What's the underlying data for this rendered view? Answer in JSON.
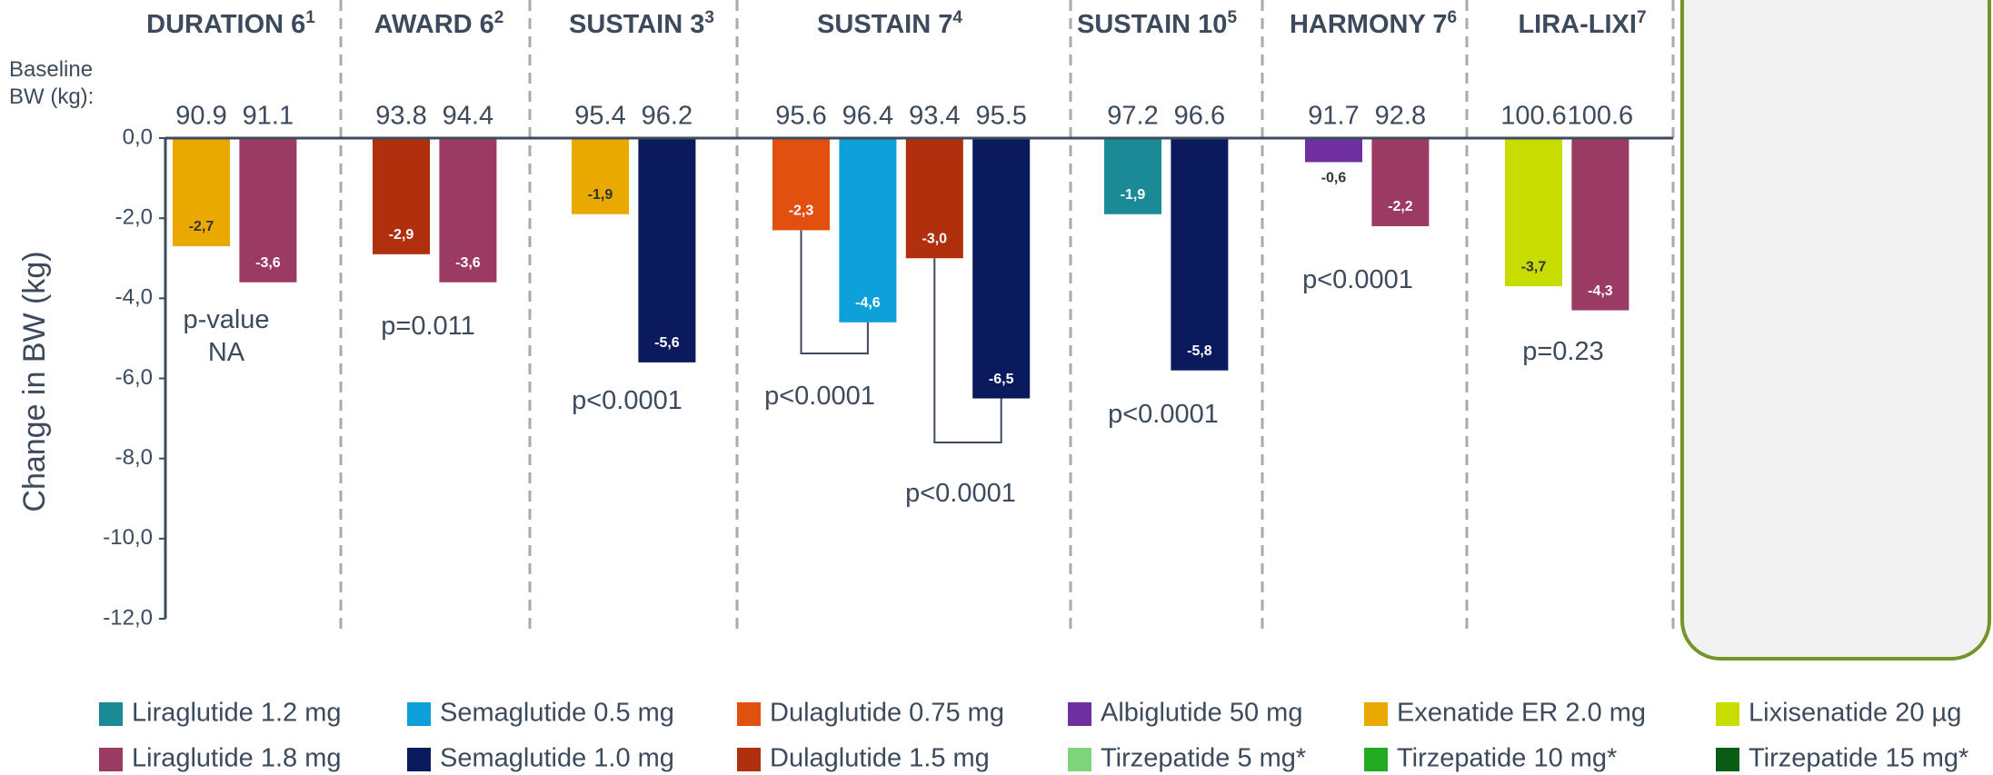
{
  "chart_data": {
    "type": "bar",
    "y_label": "Change in BW (kg)",
    "baseline_label": "Baseline BW (kg):",
    "ylim": [
      -12,
      0
    ],
    "yticks": [
      {
        "value": 0,
        "label": "0,0"
      },
      {
        "value": -2,
        "label": "-2,0"
      },
      {
        "value": -4,
        "label": "-4,0"
      },
      {
        "value": -6,
        "label": "-6,0"
      },
      {
        "value": -8,
        "label": "-8,0"
      },
      {
        "value": -10,
        "label": "-10,0"
      },
      {
        "value": -12,
        "label": "-12,0"
      }
    ],
    "groups": [
      {
        "name": "DURATION 6",
        "ref": "1",
        "p_values": [
          "p-value NA"
        ],
        "bars": [
          {
            "color": "#e9a900",
            "baseline": 90.9,
            "value": -2.7,
            "value_label": "-2,7"
          },
          {
            "color": "#9b3a62",
            "baseline": 91.1,
            "value": -3.6,
            "value_label": "-3,6"
          }
        ]
      },
      {
        "name": "AWARD 6",
        "ref": "2",
        "p_values": [
          "p=0.011"
        ],
        "bars": [
          {
            "color": "#b0300e",
            "baseline": 93.8,
            "value": -2.9,
            "value_label": "-2,9"
          },
          {
            "color": "#9b3a62",
            "baseline": 94.4,
            "value": -3.6,
            "value_label": "-3,6"
          }
        ]
      },
      {
        "name": "SUSTAIN 3",
        "ref": "3",
        "p_values": [
          "p<0.0001"
        ],
        "bars": [
          {
            "color": "#e9a900",
            "baseline": 95.4,
            "value": -1.9,
            "value_label": "-1,9"
          },
          {
            "color": "#0b1a5c",
            "baseline": 96.2,
            "value": -5.6,
            "value_label": "-5,6"
          }
        ]
      },
      {
        "name": "SUSTAIN 7",
        "ref": "4",
        "p_values": [
          "p<0.0001",
          "p<0.0001"
        ],
        "bars": [
          {
            "color": "#e2500f",
            "baseline": 95.6,
            "value": -2.3,
            "value_label": "-2,3"
          },
          {
            "color": "#0ea0d8",
            "baseline": 96.4,
            "value": -4.6,
            "value_label": "-4,6"
          },
          {
            "color": "#b0300e",
            "baseline": 93.4,
            "value": -3.0,
            "value_label": "-3,0"
          },
          {
            "color": "#0b1a5c",
            "baseline": 95.5,
            "value": -6.5,
            "value_label": "-6,5"
          }
        ]
      },
      {
        "name": "SUSTAIN 10",
        "ref": "5",
        "p_values": [
          "p<0.0001"
        ],
        "bars": [
          {
            "color": "#1a8a96",
            "baseline": 97.2,
            "value": -1.9,
            "value_label": "-1,9"
          },
          {
            "color": "#0b1a5c",
            "baseline": 96.6,
            "value": -5.8,
            "value_label": "-5,8"
          }
        ]
      },
      {
        "name": "HARMONY 7",
        "ref": "6",
        "p_values": [
          "p<0.0001"
        ],
        "bars": [
          {
            "color": "#7030a0",
            "baseline": 91.7,
            "value": -0.6,
            "value_label": "-0,6"
          },
          {
            "color": "#9b3a62",
            "baseline": 92.8,
            "value": -2.2,
            "value_label": "-2,2"
          }
        ]
      },
      {
        "name": "LIRA-LIXI",
        "ref": "7",
        "p_values": [
          "p=0.23"
        ],
        "bars": [
          {
            "color": "#c8dc00",
            "baseline": 100.6,
            "value": -3.7,
            "value_label": "-3,7"
          },
          {
            "color": "#9b3a62",
            "baseline": 100.6,
            "value": -4.3,
            "value_label": "-4,3"
          }
        ]
      }
    ],
    "legend": [
      {
        "name": "Liraglutide 1.2 mg",
        "color": "#1a8a96"
      },
      {
        "name": "Semaglutide 0.5 mg",
        "color": "#0ea0d8"
      },
      {
        "name": "Dulaglutide 0.75 mg",
        "color": "#e2500f"
      },
      {
        "name": "Albiglutide 50 mg",
        "color": "#7030a0"
      },
      {
        "name": "Exenatide ER 2.0 mg",
        "color": "#e9a900"
      },
      {
        "name": "Lixisenatide 20 µg",
        "color": "#c8dc00"
      },
      {
        "name": "Liraglutide 1.8 mg",
        "color": "#9b3a62"
      },
      {
        "name": "Semaglutide 1.0 mg",
        "color": "#0b1a5c"
      },
      {
        "name": "Dulaglutide 1.5 mg",
        "color": "#b0300e"
      },
      {
        "name": "Tirzepatide 5 mg*",
        "color": "#7fd37a"
      },
      {
        "name": "Tirzepatide 10 mg*",
        "color": "#22aa22"
      },
      {
        "name": "Tirzepatide 15 mg*",
        "color": "#0a5c14"
      }
    ]
  }
}
